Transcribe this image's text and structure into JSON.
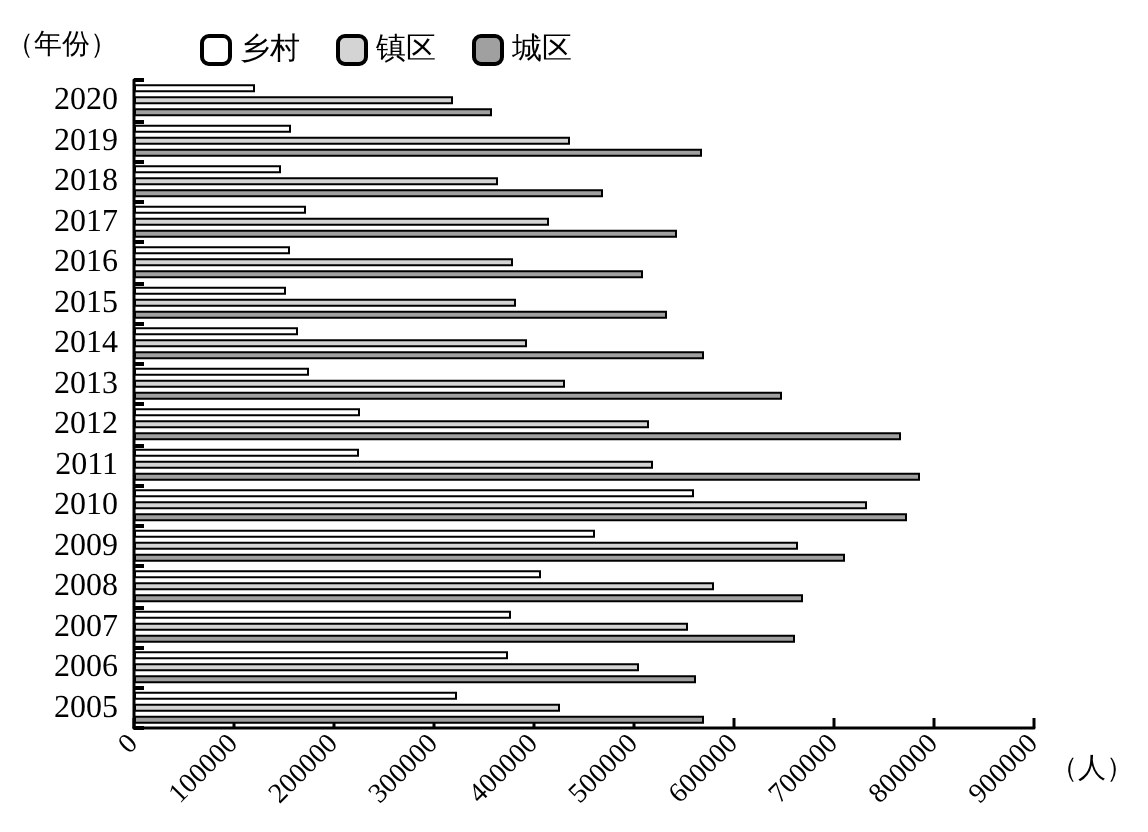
{
  "chart_data": {
    "type": "bar",
    "orientation": "horizontal",
    "ylabel": "（年份）",
    "xlabel": "（人）",
    "categories": [
      "2020",
      "2019",
      "2018",
      "2017",
      "2016",
      "2015",
      "2014",
      "2013",
      "2012",
      "2011",
      "2010",
      "2009",
      "2008",
      "2007",
      "2006",
      "2005"
    ],
    "series": [
      {
        "name": "乡村",
        "color": "#ffffff",
        "values": [
          121000,
          157000,
          147000,
          172000,
          156000,
          152000,
          164000,
          175000,
          226000,
          225000,
          560000,
          461000,
          407000,
          377000,
          374000,
          323000
        ]
      },
      {
        "name": "镇区",
        "color": "#d4d4d4",
        "values": [
          319000,
          436000,
          364000,
          415000,
          379000,
          382000,
          393000,
          431000,
          515000,
          519000,
          733000,
          664000,
          580000,
          554000,
          505000,
          426000
        ]
      },
      {
        "name": "城区",
        "color": "#a0a0a0",
        "values": [
          358000,
          568000,
          469000,
          543000,
          509000,
          533000,
          570000,
          648000,
          767000,
          786000,
          773000,
          711000,
          669000,
          661000,
          562000,
          570000
        ]
      }
    ],
    "xlim": [
      0,
      900000
    ],
    "xticks": [
      0,
      100000,
      200000,
      300000,
      400000,
      500000,
      600000,
      700000,
      800000,
      900000
    ],
    "grid": false,
    "legend": "top left"
  }
}
